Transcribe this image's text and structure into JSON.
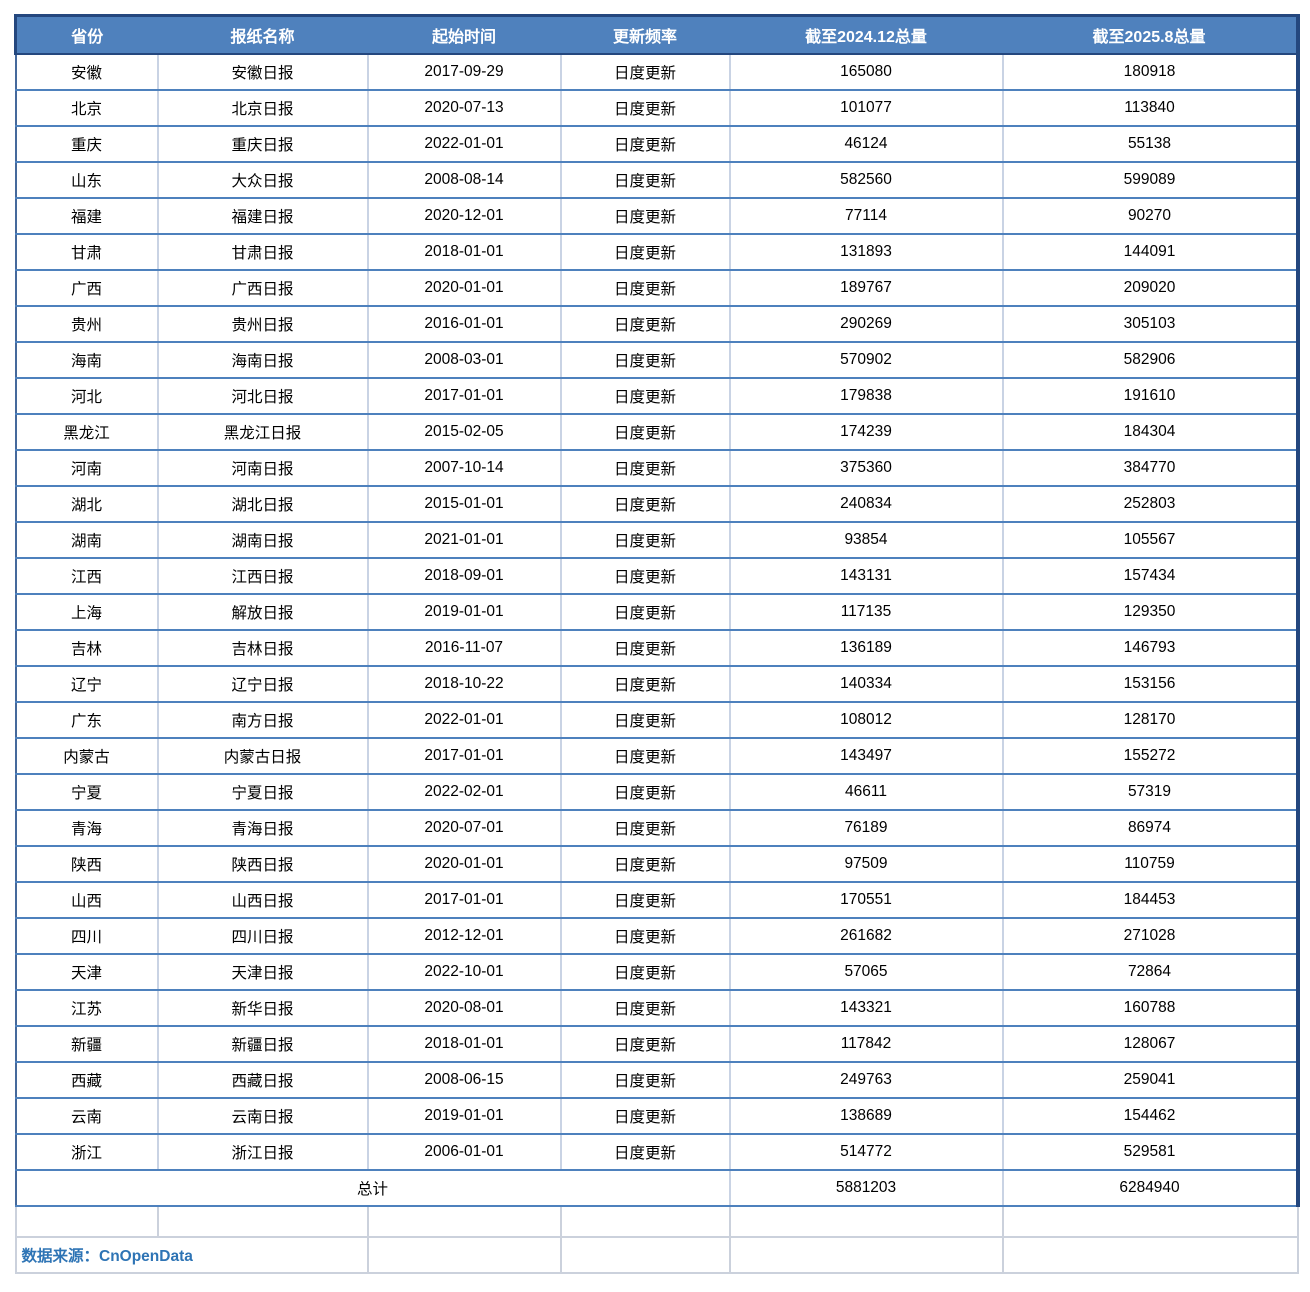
{
  "chart_data": {
    "type": "table",
    "columns": [
      "省份",
      "报纸名称",
      "起始时间",
      "更新频率",
      "截至2024.12总量",
      "截至2025.8总量"
    ],
    "rows": [
      [
        "安徽",
        "安徽日报",
        "2017-09-29",
        "日度更新",
        165080,
        180918
      ],
      [
        "北京",
        "北京日报",
        "2020-07-13",
        "日度更新",
        101077,
        113840
      ],
      [
        "重庆",
        "重庆日报",
        "2022-01-01",
        "日度更新",
        46124,
        55138
      ],
      [
        "山东",
        "大众日报",
        "2008-08-14",
        "日度更新",
        582560,
        599089
      ],
      [
        "福建",
        "福建日报",
        "2020-12-01",
        "日度更新",
        77114,
        90270
      ],
      [
        "甘肃",
        "甘肃日报",
        "2018-01-01",
        "日度更新",
        131893,
        144091
      ],
      [
        "广西",
        "广西日报",
        "2020-01-01",
        "日度更新",
        189767,
        209020
      ],
      [
        "贵州",
        "贵州日报",
        "2016-01-01",
        "日度更新",
        290269,
        305103
      ],
      [
        "海南",
        "海南日报",
        "2008-03-01",
        "日度更新",
        570902,
        582906
      ],
      [
        "河北",
        "河北日报",
        "2017-01-01",
        "日度更新",
        179838,
        191610
      ],
      [
        "黑龙江",
        "黑龙江日报",
        "2015-02-05",
        "日度更新",
        174239,
        184304
      ],
      [
        "河南",
        "河南日报",
        "2007-10-14",
        "日度更新",
        375360,
        384770
      ],
      [
        "湖北",
        "湖北日报",
        "2015-01-01",
        "日度更新",
        240834,
        252803
      ],
      [
        "湖南",
        "湖南日报",
        "2021-01-01",
        "日度更新",
        93854,
        105567
      ],
      [
        "江西",
        "江西日报",
        "2018-09-01",
        "日度更新",
        143131,
        157434
      ],
      [
        "上海",
        "解放日报",
        "2019-01-01",
        "日度更新",
        117135,
        129350
      ],
      [
        "吉林",
        "吉林日报",
        "2016-11-07",
        "日度更新",
        136189,
        146793
      ],
      [
        "辽宁",
        "辽宁日报",
        "2018-10-22",
        "日度更新",
        140334,
        153156
      ],
      [
        "广东",
        "南方日报",
        "2022-01-01",
        "日度更新",
        108012,
        128170
      ],
      [
        "内蒙古",
        "内蒙古日报",
        "2017-01-01",
        "日度更新",
        143497,
        155272
      ],
      [
        "宁夏",
        "宁夏日报",
        "2022-02-01",
        "日度更新",
        46611,
        57319
      ],
      [
        "青海",
        "青海日报",
        "2020-07-01",
        "日度更新",
        76189,
        86974
      ],
      [
        "陕西",
        "陕西日报",
        "2020-01-01",
        "日度更新",
        97509,
        110759
      ],
      [
        "山西",
        "山西日报",
        "2017-01-01",
        "日度更新",
        170551,
        184453
      ],
      [
        "四川",
        "四川日报",
        "2012-12-01",
        "日度更新",
        261682,
        271028
      ],
      [
        "天津",
        "天津日报",
        "2022-10-01",
        "日度更新",
        57065,
        72864
      ],
      [
        "江苏",
        "新华日报",
        "2020-08-01",
        "日度更新",
        143321,
        160788
      ],
      [
        "新疆",
        "新疆日报",
        "2018-01-01",
        "日度更新",
        117842,
        128067
      ],
      [
        "西藏",
        "西藏日报",
        "2008-06-15",
        "日度更新",
        249763,
        259041
      ],
      [
        "云南",
        "云南日报",
        "2019-01-01",
        "日度更新",
        138689,
        154462
      ],
      [
        "浙江",
        "浙江日报",
        "2006-01-01",
        "日度更新",
        514772,
        529581
      ]
    ],
    "total_row": {
      "label": "总计",
      "total_2024_12": 5881203,
      "total_2025_8": 6284940
    },
    "source_note": "数据来源：CnOpenData",
    "layout_hints": {
      "grid": true,
      "header_position": "top"
    }
  },
  "colors": {
    "header_bg": "#4F81BD",
    "header_text": "#FFFFFF",
    "header_outline": "#24477E",
    "row_border": "#4E81BD",
    "column_border": "#C9D3E4",
    "outer_border": "#45699C",
    "footer_border": "#CBD1DC",
    "source_text": "#2E74B5",
    "cell_text": "#000000"
  }
}
